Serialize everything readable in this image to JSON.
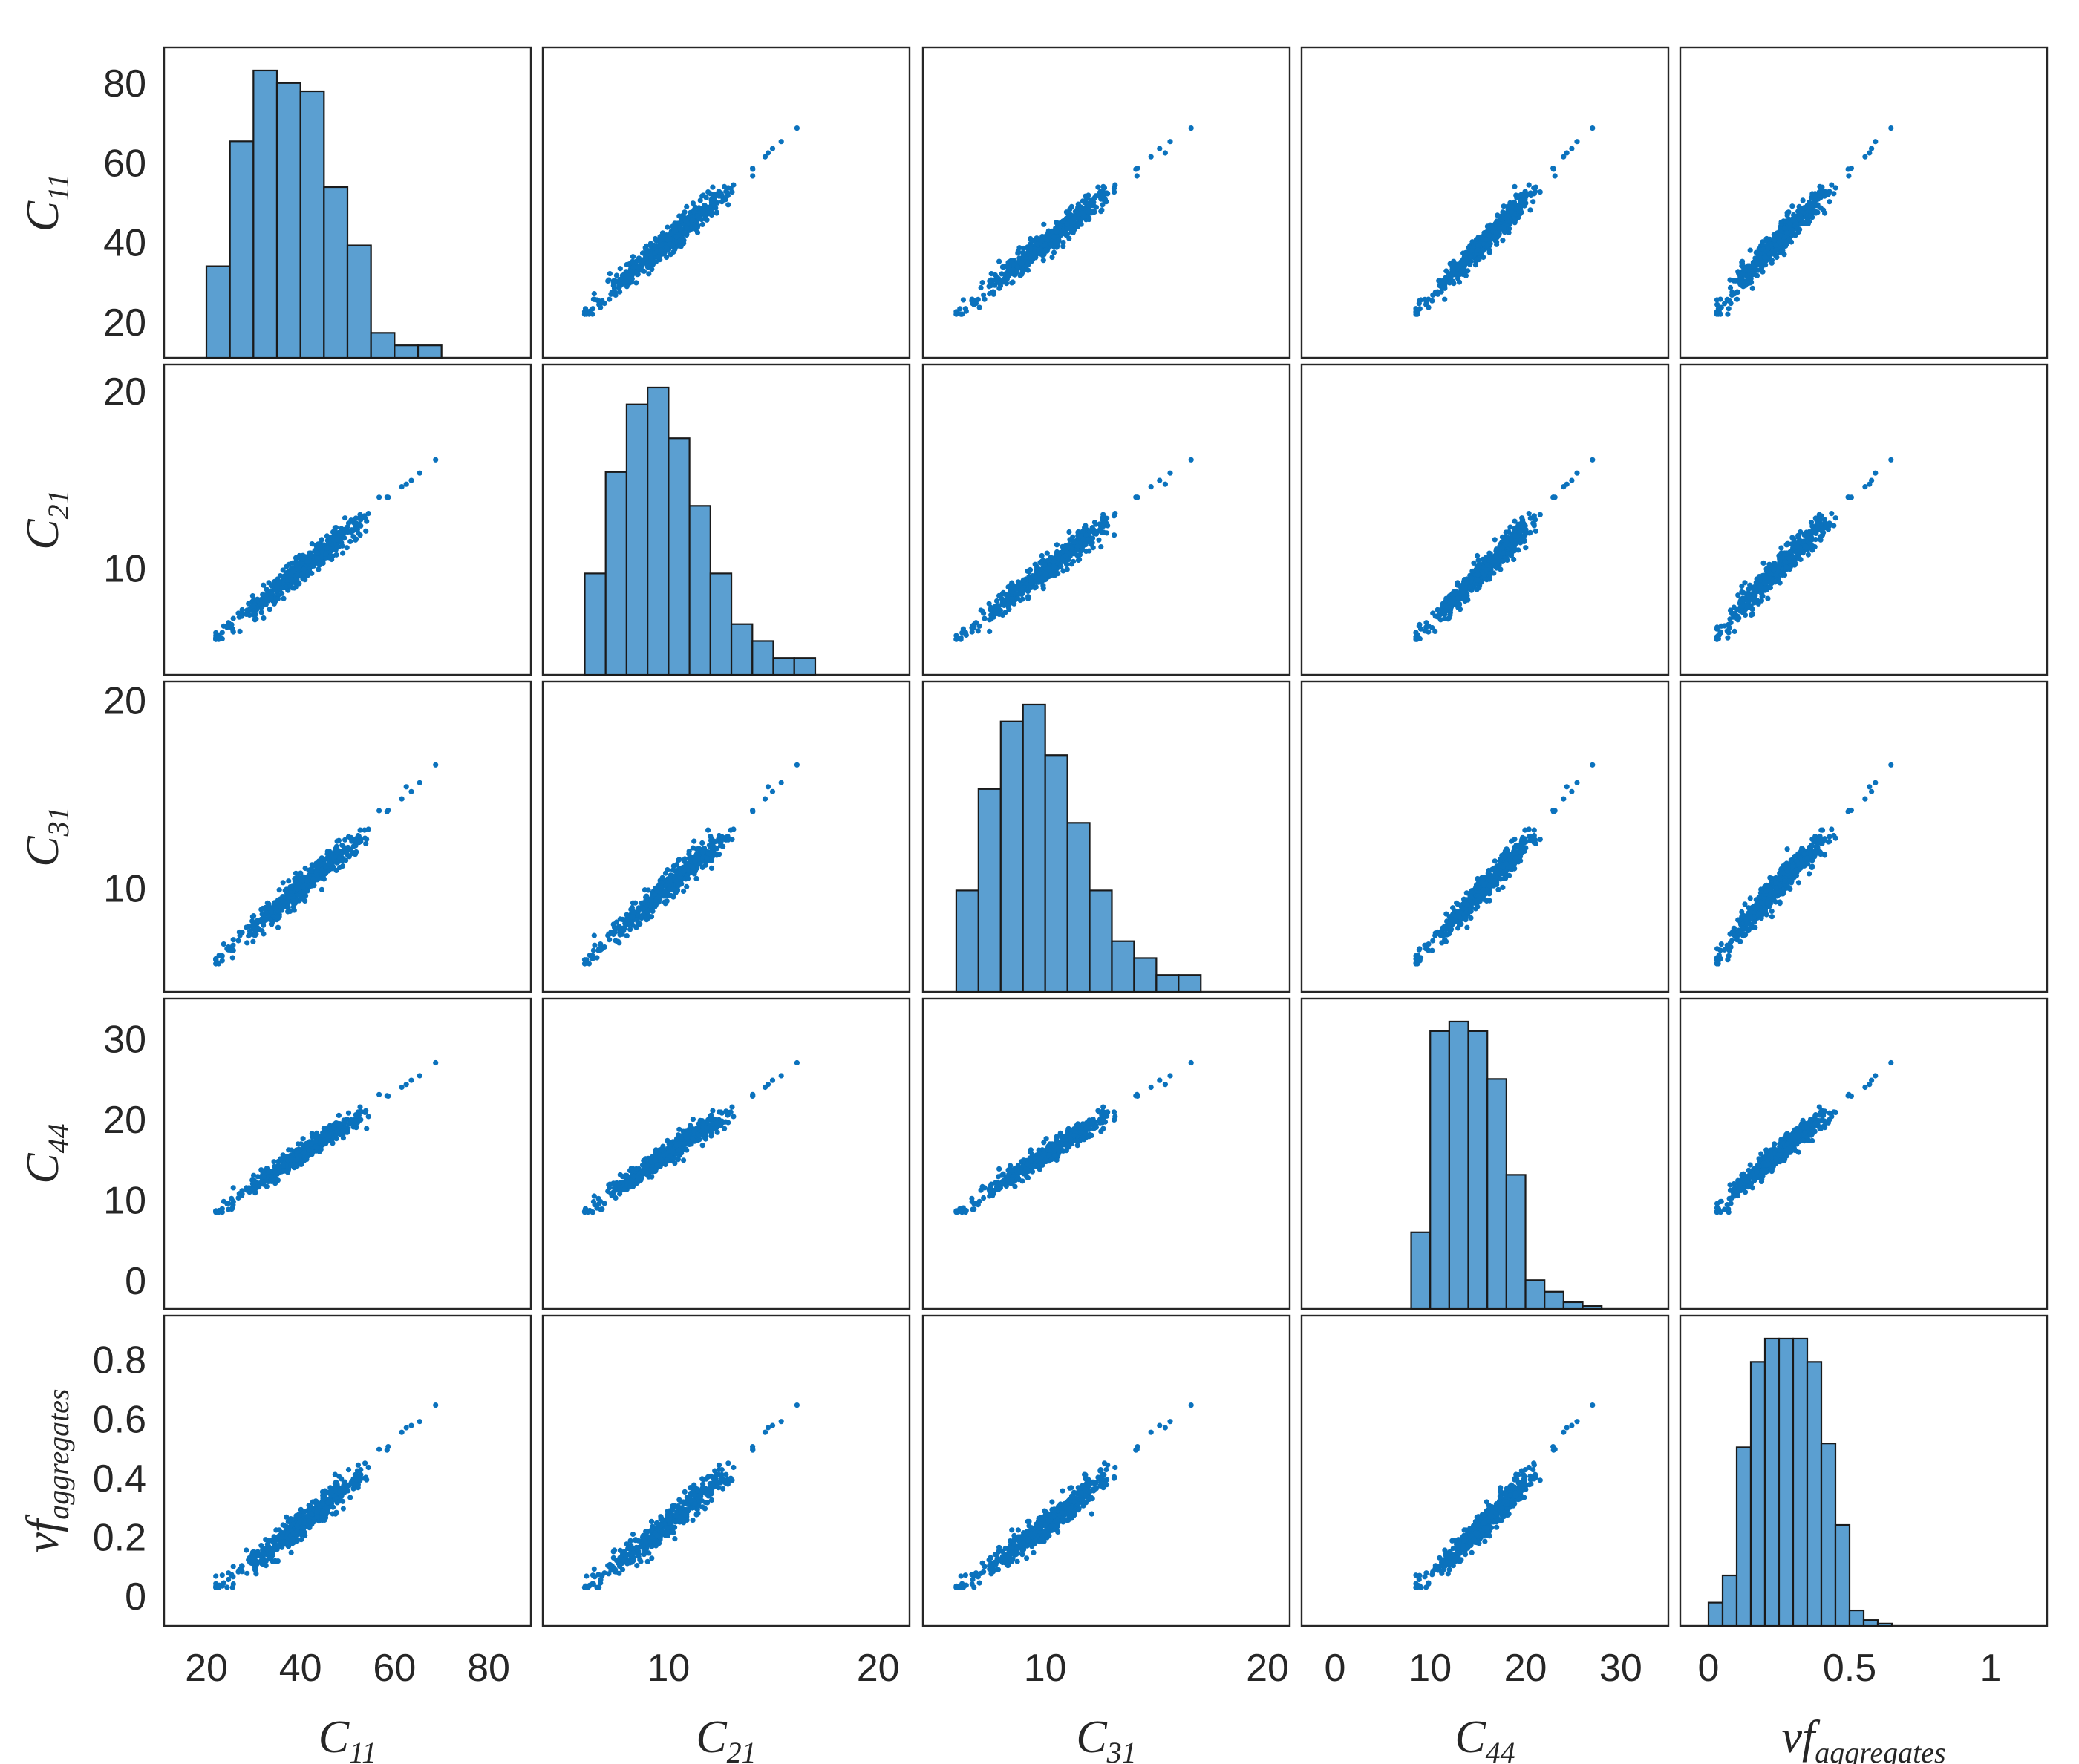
{
  "chart_data": {
    "type": "scatter",
    "subtype": "scatter-matrix",
    "variables": [
      {
        "key": "C11",
        "label": {
          "base": "C",
          "sub": "11"
        },
        "lim": [
          11,
          89
        ],
        "ticks": [
          20,
          40,
          60,
          80
        ],
        "hist_edges": [
          20,
          25,
          30,
          35,
          40,
          45,
          50,
          55,
          60,
          65,
          70
        ],
        "hist_counts": [
          22,
          52,
          69,
          66,
          64,
          41,
          27,
          6,
          3,
          3
        ]
      },
      {
        "key": "C21",
        "label": {
          "base": "C",
          "sub": "21"
        },
        "lim": [
          4,
          21.5
        ],
        "ticks": [
          10,
          20
        ],
        "hist_edges": [
          6,
          7,
          8,
          9,
          10,
          11,
          12,
          13,
          14,
          15,
          16,
          17
        ],
        "hist_counts": [
          6,
          12,
          16,
          17,
          14,
          10,
          6,
          3,
          2,
          1,
          1
        ]
      },
      {
        "key": "C31",
        "label": {
          "base": "C",
          "sub": "31"
        },
        "lim": [
          4.5,
          21
        ],
        "ticks": [
          10,
          20
        ],
        "hist_edges": [
          6,
          7,
          8,
          9,
          10,
          11,
          12,
          13,
          14,
          15,
          16,
          17
        ],
        "hist_counts": [
          6,
          12,
          16,
          17,
          14,
          10,
          6,
          3,
          2,
          1,
          1
        ]
      },
      {
        "key": "C44",
        "label": {
          "base": "C",
          "sub": "44"
        },
        "lim": [
          -3.5,
          35
        ],
        "ticks": [
          0,
          10,
          20,
          30
        ],
        "hist_edges": [
          8,
          10,
          12,
          14,
          16,
          18,
          20,
          22,
          24,
          26,
          28
        ],
        "hist_counts": [
          8,
          29,
          30,
          29,
          24,
          14,
          3,
          1.8,
          0.7,
          0.3
        ]
      },
      {
        "key": "vf",
        "label": {
          "base": "vf",
          "sub": "aggregates"
        },
        "lim": [
          -0.1,
          0.95
        ],
        "ticks": [
          0,
          0.2,
          0.4,
          0.6,
          0.8
        ],
        "xticks": [
          0,
          0.5,
          1
        ],
        "xlim": [
          -0.1,
          1.2
        ],
        "hist_edges": [
          0,
          0.05,
          0.1,
          0.15,
          0.2,
          0.25,
          0.3,
          0.35,
          0.4,
          0.45,
          0.5,
          0.55,
          0.6,
          0.65
        ],
        "hist_counts": [
          6,
          13,
          46,
          68,
          74,
          74,
          74,
          68,
          47,
          26,
          4,
          1.5,
          0.6
        ]
      }
    ],
    "scatter_model": {
      "note": "off-diagonal panels: ~500 correlated samples per pair, all variables increase together",
      "min": {
        "C11": 22,
        "C21": 6,
        "C31": 6,
        "C44": 8.5,
        "vf": 0.03
      },
      "max": {
        "C11": 69,
        "C21": 16.2,
        "C31": 16.5,
        "C44": 27,
        "vf": 0.65
      },
      "n_points": 500
    }
  }
}
